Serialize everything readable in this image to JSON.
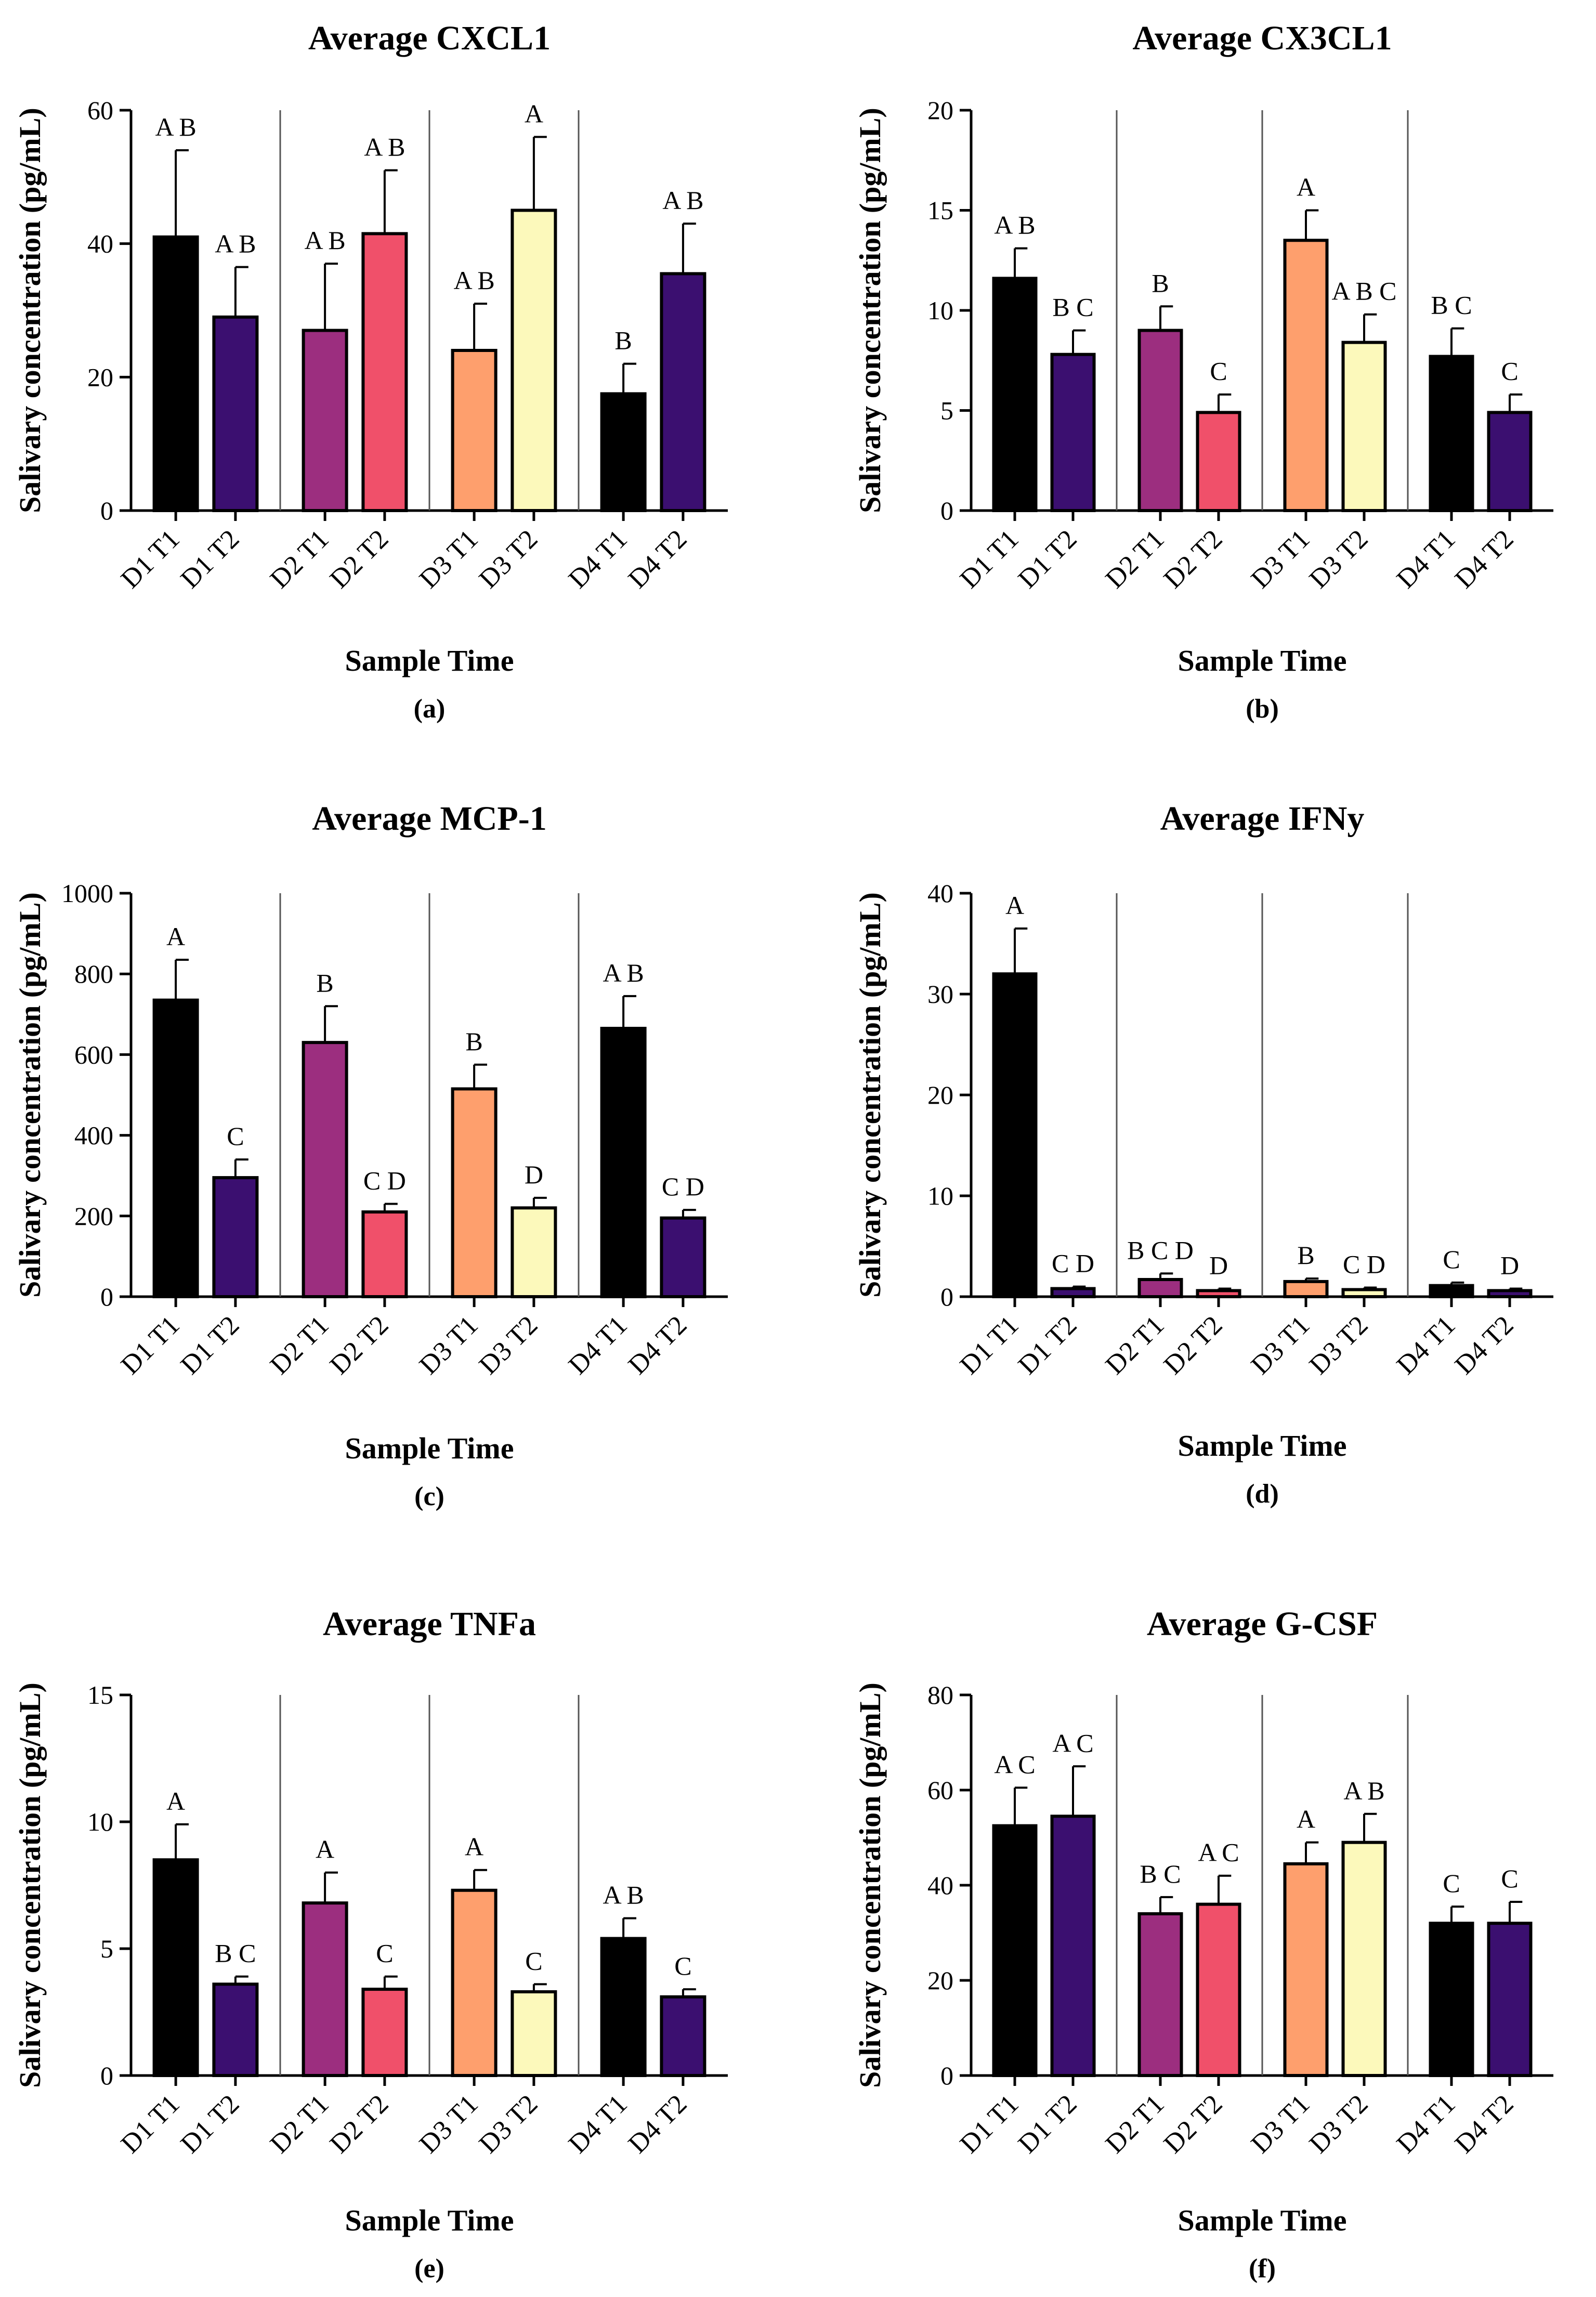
{
  "chart_data": [
    {
      "type": "bar",
      "panel_label": "(a)",
      "title": "Average CXCL1",
      "xlabel": "Sample Time",
      "ylabel": "Salivary concentration (pg/mL)",
      "ylim": [
        0,
        60
      ],
      "yticks": [
        "0",
        "20",
        "40",
        "60"
      ],
      "categories": [
        "D1 T1",
        "D1 T2",
        "D2 T1",
        "D2 T2",
        "D3 T1",
        "D3 T2",
        "D4 T1",
        "D4 T2"
      ],
      "values": [
        41,
        29,
        27,
        41.5,
        24,
        45,
        17.5,
        35.5
      ],
      "errors": [
        13,
        7.5,
        10,
        9.5,
        7,
        11,
        4.5,
        7.5
      ],
      "significance": [
        "A B",
        "A B",
        "A B",
        "A B",
        "A B",
        "A",
        "B",
        "A B"
      ],
      "colors": [
        "#000000",
        "#3b0f70",
        "#9c2e7f",
        "#f0506a",
        "#fe9f6d",
        "#fcf9bb",
        "#000000",
        "#3b0f70"
      ]
    },
    {
      "type": "bar",
      "panel_label": "(b)",
      "title": "Average CX3CL1",
      "xlabel": "Sample Time",
      "ylabel": "Salivary concentration (pg/mL)",
      "ylim": [
        0,
        20
      ],
      "yticks": [
        "0",
        "5",
        "10",
        "15",
        "20"
      ],
      "categories": [
        "D1 T1",
        "D1 T2",
        "D2 T1",
        "D2 T2",
        "D3 T1",
        "D3 T2",
        "D4 T1",
        "D4 T2"
      ],
      "values": [
        11.6,
        7.8,
        9.0,
        4.9,
        13.5,
        8.4,
        7.7,
        4.9
      ],
      "errors": [
        1.5,
        1.2,
        1.2,
        0.9,
        1.5,
        1.4,
        1.4,
        0.9
      ],
      "significance": [
        "A B",
        "B C",
        "B",
        "C",
        "A",
        "A B C",
        "B C",
        "C"
      ],
      "colors": [
        "#000000",
        "#3b0f70",
        "#9c2e7f",
        "#f0506a",
        "#fe9f6d",
        "#fcf9bb",
        "#000000",
        "#3b0f70"
      ]
    },
    {
      "type": "bar",
      "panel_label": "(c)",
      "title": "Average MCP-1",
      "xlabel": "Sample Time",
      "ylabel": "Salivary concentration (pg/mL)",
      "ylim": [
        0,
        1000
      ],
      "yticks": [
        "0",
        "200",
        "400",
        "600",
        "800",
        "1000"
      ],
      "categories": [
        "D1 T1",
        "D1 T2",
        "D2 T1",
        "D2 T2",
        "D3 T1",
        "D3 T2",
        "D4 T1",
        "D4 T2"
      ],
      "values": [
        735,
        295,
        630,
        210,
        515,
        220,
        665,
        195
      ],
      "errors": [
        100,
        45,
        90,
        20,
        60,
        25,
        80,
        20
      ],
      "significance": [
        "A",
        "C",
        "B",
        "C D",
        "B",
        "D",
        "A B",
        "C D"
      ],
      "colors": [
        "#000000",
        "#3b0f70",
        "#9c2e7f",
        "#f0506a",
        "#fe9f6d",
        "#fcf9bb",
        "#000000",
        "#3b0f70"
      ]
    },
    {
      "type": "bar",
      "panel_label": "(d)",
      "title": "Average IFNy",
      "xlabel": "Sample Time",
      "ylabel": "Salivary concentration (pg/mL)",
      "ylim": [
        0,
        40
      ],
      "yticks": [
        "0",
        "10",
        "20",
        "30",
        "40"
      ],
      "categories": [
        "D1 T1",
        "D1 T2",
        "D2 T1",
        "D2 T2",
        "D3 T1",
        "D3 T2",
        "D4 T1",
        "D4 T2"
      ],
      "values": [
        32,
        0.8,
        1.7,
        0.6,
        1.5,
        0.7,
        1.1,
        0.6
      ],
      "errors": [
        4.5,
        0.2,
        0.6,
        0.2,
        0.3,
        0.2,
        0.3,
        0.2
      ],
      "significance": [
        "A",
        "C D",
        "B C D",
        "D",
        "B",
        "C D",
        "C",
        "D"
      ],
      "colors": [
        "#000000",
        "#3b0f70",
        "#9c2e7f",
        "#f0506a",
        "#fe9f6d",
        "#fcf9bb",
        "#000000",
        "#3b0f70"
      ]
    },
    {
      "type": "bar",
      "panel_label": "(e)",
      "title": "Average TNFa",
      "xlabel": "Sample Time",
      "ylabel": "Salivary concentration (pg/mL)",
      "ylim": [
        0,
        15
      ],
      "yticks": [
        "0",
        "5",
        "10",
        "15"
      ],
      "categories": [
        "D1 T1",
        "D1 T2",
        "D2 T1",
        "D2 T2",
        "D3 T1",
        "D3 T2",
        "D4 T1",
        "D4 T2"
      ],
      "values": [
        8.5,
        3.6,
        6.8,
        3.4,
        7.3,
        3.3,
        5.4,
        3.1
      ],
      "errors": [
        1.4,
        0.3,
        1.2,
        0.5,
        0.8,
        0.3,
        0.8,
        0.3
      ],
      "significance": [
        "A",
        "B C",
        "A",
        "C",
        "A",
        "C",
        "A B",
        "C"
      ],
      "colors": [
        "#000000",
        "#3b0f70",
        "#9c2e7f",
        "#f0506a",
        "#fe9f6d",
        "#fcf9bb",
        "#000000",
        "#3b0f70"
      ]
    },
    {
      "type": "bar",
      "panel_label": "(f)",
      "title": "Average G-CSF",
      "xlabel": "Sample Time",
      "ylabel": "Salivary concentration (pg/mL)",
      "ylim": [
        0,
        80
      ],
      "yticks": [
        "0",
        "20",
        "40",
        "60",
        "80"
      ],
      "categories": [
        "D1 T1",
        "D1 T2",
        "D2 T1",
        "D2 T2",
        "D3 T1",
        "D3 T2",
        "D4 T1",
        "D4 T2"
      ],
      "values": [
        52.5,
        54.5,
        34,
        36,
        44.5,
        49,
        32,
        32
      ],
      "errors": [
        8,
        10.5,
        3.5,
        6,
        4.5,
        6,
        3.5,
        4.5
      ],
      "significance": [
        "A C",
        "A C",
        "B C",
        "A C",
        "A",
        "A B",
        "C",
        "C"
      ],
      "colors": [
        "#000000",
        "#3b0f70",
        "#9c2e7f",
        "#f0506a",
        "#fe9f6d",
        "#fcf9bb",
        "#000000",
        "#3b0f70"
      ]
    }
  ]
}
